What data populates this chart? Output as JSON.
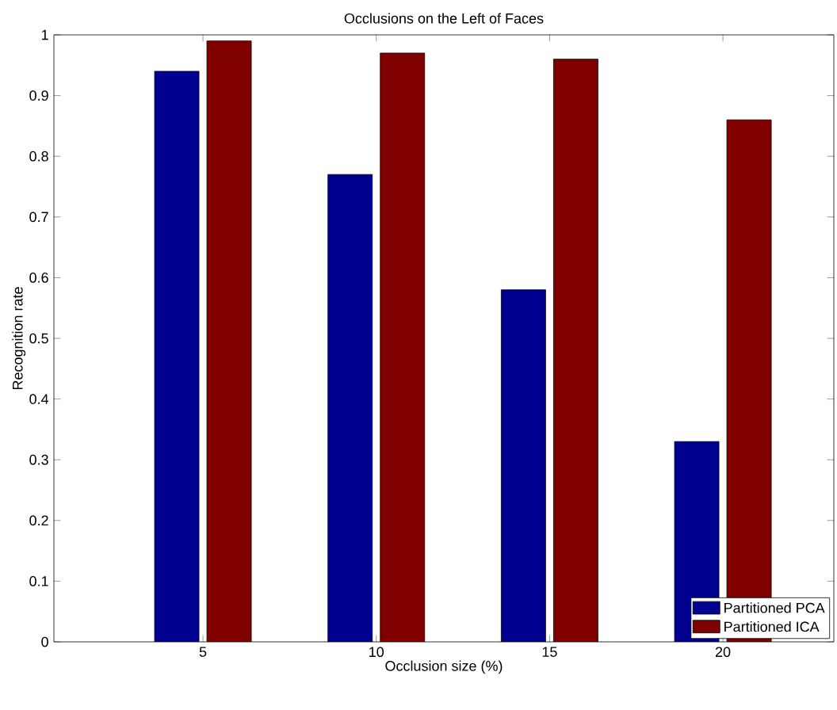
{
  "chart_data": {
    "type": "bar",
    "title": "Occlusions on the Left of Faces",
    "xlabel": "Occlusion size (%)",
    "ylabel": "Recognition rate",
    "categories": [
      "5",
      "10",
      "15",
      "20"
    ],
    "series": [
      {
        "name": "Partitioned PCA",
        "color": "#000090",
        "values": [
          0.94,
          0.77,
          0.58,
          0.33
        ]
      },
      {
        "name": "Partitioned ICA",
        "color": "#800000",
        "values": [
          0.99,
          0.97,
          0.96,
          0.86
        ]
      }
    ],
    "ylim": [
      0,
      1
    ],
    "yticks": [
      0,
      0.1,
      0.2,
      0.3,
      0.4,
      0.5,
      0.6,
      0.7,
      0.8,
      0.9,
      1
    ],
    "grid": false,
    "legend": "bottom right"
  }
}
